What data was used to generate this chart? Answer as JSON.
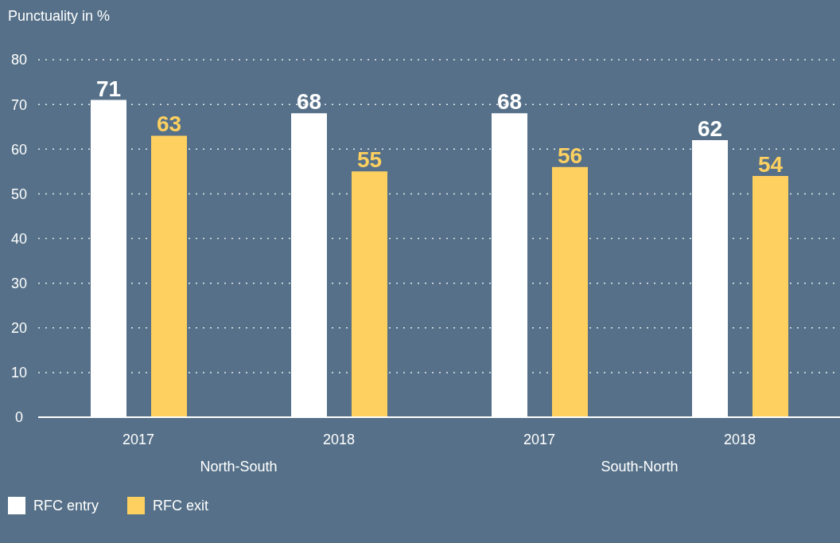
{
  "chart_data": {
    "type": "bar",
    "title": "Punctuality in %",
    "categories": [
      "2017",
      "2018",
      "2017",
      "2018"
    ],
    "series": [
      {
        "name": "RFC entry",
        "color": "#ffffff",
        "values": [
          71,
          68,
          68,
          62
        ]
      },
      {
        "name": "RFC exit",
        "color": "#fdd060",
        "values": [
          63,
          55,
          56,
          54
        ]
      }
    ],
    "annotations": [
      "North-South",
      "South-North"
    ],
    "ylim": [
      0,
      80
    ],
    "yticks": [
      0,
      10,
      20,
      30,
      40,
      50,
      60,
      70,
      80
    ],
    "grid": "y",
    "legend": "bottom left",
    "data_labels": true
  }
}
